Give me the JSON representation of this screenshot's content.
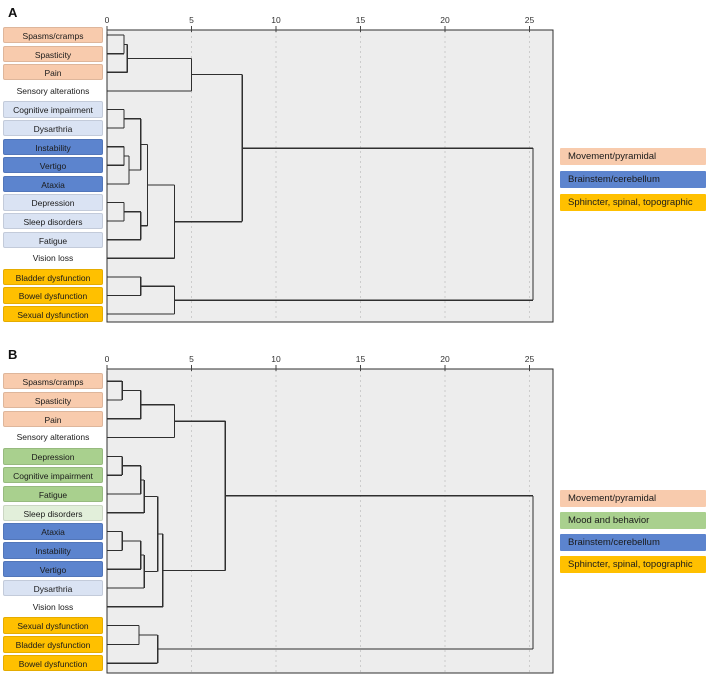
{
  "palette": {
    "peach": "#F8CBAD",
    "blue": "#5C84CE",
    "lightblue": "#DAE3F3",
    "gold": "#FFC000",
    "green": "#A9D08E",
    "lightgreen": "#E2EFDA",
    "white": "#FFFFFF",
    "plot_bg": "#EDEDED",
    "grid": "#CCCCCC",
    "line": "#2F2F2F"
  },
  "chart_data": [
    {
      "type": "dendrogram",
      "panel": "A",
      "orientation": "horizontal, labels left, axis on top",
      "axis": {
        "ticks": [
          0,
          5,
          10,
          15,
          20,
          25
        ],
        "max": 26.4,
        "gridlines": [
          5,
          10,
          15,
          20,
          25
        ]
      },
      "leaves": [
        {
          "label": "Spasms/cramps",
          "color": "peach"
        },
        {
          "label": "Spasticity",
          "color": "peach"
        },
        {
          "label": "Pain",
          "color": "peach"
        },
        {
          "label": "Sensory alterations",
          "color": "white"
        },
        {
          "label": "Cognitive impairment",
          "color": "lightblue"
        },
        {
          "label": "Dysarthria",
          "color": "lightblue"
        },
        {
          "label": "Instability",
          "color": "blue"
        },
        {
          "label": "Vertigo",
          "color": "blue"
        },
        {
          "label": "Ataxia",
          "color": "blue"
        },
        {
          "label": "Depression",
          "color": "lightblue"
        },
        {
          "label": "Sleep disorders",
          "color": "lightblue"
        },
        {
          "label": "Fatigue",
          "color": "lightblue"
        },
        {
          "label": "Vision loss",
          "color": "white"
        },
        {
          "label": "Bladder dysfunction",
          "color": "gold"
        },
        {
          "label": "Bowel dysfunction",
          "color": "gold"
        },
        {
          "label": "Sexual dysfunction",
          "color": "gold"
        }
      ],
      "merges": [
        {
          "a": "L0",
          "b": "L1",
          "h": 1.0
        },
        {
          "a": "M0",
          "b": "L2",
          "h": 1.2
        },
        {
          "a": "M1",
          "b": "L3",
          "h": 5.0
        },
        {
          "a": "L4",
          "b": "L5",
          "h": 1.0
        },
        {
          "a": "L6",
          "b": "L7",
          "h": 1.0
        },
        {
          "a": "M4",
          "b": "L8",
          "h": 1.3
        },
        {
          "a": "M3",
          "b": "M5",
          "h": 2.0
        },
        {
          "a": "L9",
          "b": "L10",
          "h": 1.0
        },
        {
          "a": "M7",
          "b": "L11",
          "h": 2.0
        },
        {
          "a": "M6",
          "b": "M8",
          "h": 2.4
        },
        {
          "a": "M9",
          "b": "L12",
          "h": 4.0
        },
        {
          "a": "M2",
          "b": "M10",
          "h": 8.0
        },
        {
          "a": "L13",
          "b": "L14",
          "h": 2.0
        },
        {
          "a": "M12",
          "b": "L15",
          "h": 4.0
        },
        {
          "a": "M11",
          "b": "M13",
          "h": 25.2
        }
      ],
      "legend": [
        {
          "label": "Movement/pyramidal",
          "color": "peach"
        },
        {
          "label": "Brainstem/cerebellum",
          "color": "blue"
        },
        {
          "label": "Sphincter, spinal, topographic",
          "color": "gold"
        }
      ]
    },
    {
      "type": "dendrogram",
      "panel": "B",
      "orientation": "horizontal, labels left, axis on top",
      "axis": {
        "ticks": [
          0,
          5,
          10,
          15,
          20,
          25
        ],
        "max": 26.4,
        "gridlines": [
          5,
          10,
          15,
          20,
          25
        ]
      },
      "leaves": [
        {
          "label": "Spasms/cramps",
          "color": "peach"
        },
        {
          "label": "Spasticity",
          "color": "peach"
        },
        {
          "label": "Pain",
          "color": "peach"
        },
        {
          "label": "Sensory alterations",
          "color": "white"
        },
        {
          "label": "Depression",
          "color": "green"
        },
        {
          "label": "Cognitive impairment",
          "color": "green"
        },
        {
          "label": "Fatigue",
          "color": "green"
        },
        {
          "label": "Sleep disorders",
          "color": "lightgreen"
        },
        {
          "label": "Ataxia",
          "color": "blue"
        },
        {
          "label": "Instability",
          "color": "blue"
        },
        {
          "label": "Vertigo",
          "color": "blue"
        },
        {
          "label": "Dysarthria",
          "color": "lightblue"
        },
        {
          "label": "Vision loss",
          "color": "white"
        },
        {
          "label": "Sexual dysfunction",
          "color": "gold"
        },
        {
          "label": "Bladder dysfunction",
          "color": "gold"
        },
        {
          "label": "Bowel dysfunction",
          "color": "gold"
        }
      ],
      "merges": [
        {
          "a": "L0",
          "b": "L1",
          "h": 0.9
        },
        {
          "a": "M0",
          "b": "L2",
          "h": 2.0
        },
        {
          "a": "M1",
          "b": "L3",
          "h": 4.0
        },
        {
          "a": "L4",
          "b": "L5",
          "h": 0.9
        },
        {
          "a": "M3",
          "b": "L6",
          "h": 2.0
        },
        {
          "a": "M4",
          "b": "L7",
          "h": 2.2
        },
        {
          "a": "L8",
          "b": "L9",
          "h": 0.9
        },
        {
          "a": "M6",
          "b": "L10",
          "h": 2.0
        },
        {
          "a": "M7",
          "b": "L11",
          "h": 2.2
        },
        {
          "a": "M5",
          "b": "M8",
          "h": 3.0
        },
        {
          "a": "M9",
          "b": "L12",
          "h": 3.3
        },
        {
          "a": "M2",
          "b": "M10",
          "h": 7.0
        },
        {
          "a": "L13",
          "b": "L14",
          "h": 1.9
        },
        {
          "a": "M12",
          "b": "L15",
          "h": 3.0
        },
        {
          "a": "M11",
          "b": "M13",
          "h": 25.2
        }
      ],
      "legend": [
        {
          "label": "Movement/pyramidal",
          "color": "peach"
        },
        {
          "label": "Mood and behavior",
          "color": "green"
        },
        {
          "label": "Brainstem/cerebellum",
          "color": "blue"
        },
        {
          "label": "Sphincter, spinal, topographic",
          "color": "gold"
        }
      ]
    }
  ]
}
